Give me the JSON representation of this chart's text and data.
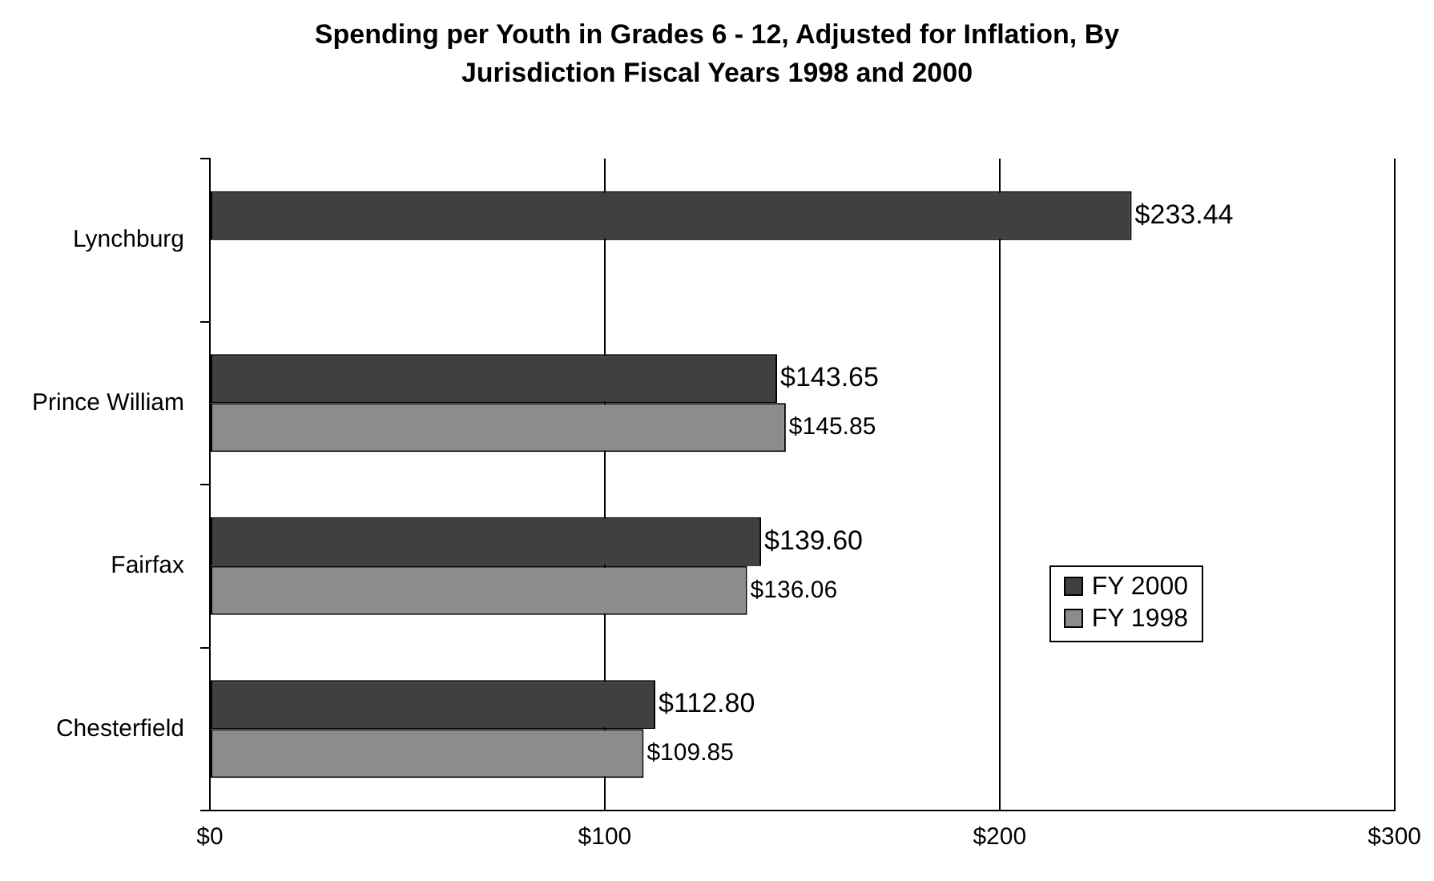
{
  "chart_data": {
    "type": "bar",
    "orientation": "horizontal",
    "title": "Spending per Youth in Grades 6 - 12, Adjusted for Inflation, By Jurisdiction Fiscal Years 1998 and 2000",
    "categories": [
      "Lynchburg",
      "Prince William",
      "Fairfax",
      "Chesterfield"
    ],
    "series": [
      {
        "name": "FY 2000",
        "color": "#404040",
        "values": [
          233.44,
          143.65,
          139.6,
          112.8
        ],
        "value_labels": [
          "$233.44",
          "$143.65",
          "$139.60",
          "$112.80"
        ]
      },
      {
        "name": "FY 1998",
        "color": "#8c8c8c",
        "values": [
          null,
          145.85,
          136.06,
          109.85
        ],
        "value_labels": [
          null,
          "$145.85",
          "$136.06",
          "$109.85"
        ]
      }
    ],
    "xlim": [
      0,
      300
    ],
    "xticks": [
      {
        "value": 0,
        "label": "$0"
      },
      {
        "value": 100,
        "label": "$100"
      },
      {
        "value": 200,
        "label": "$200"
      },
      {
        "value": 300,
        "label": "$300"
      }
    ],
    "grid": "x",
    "legend": "right"
  }
}
